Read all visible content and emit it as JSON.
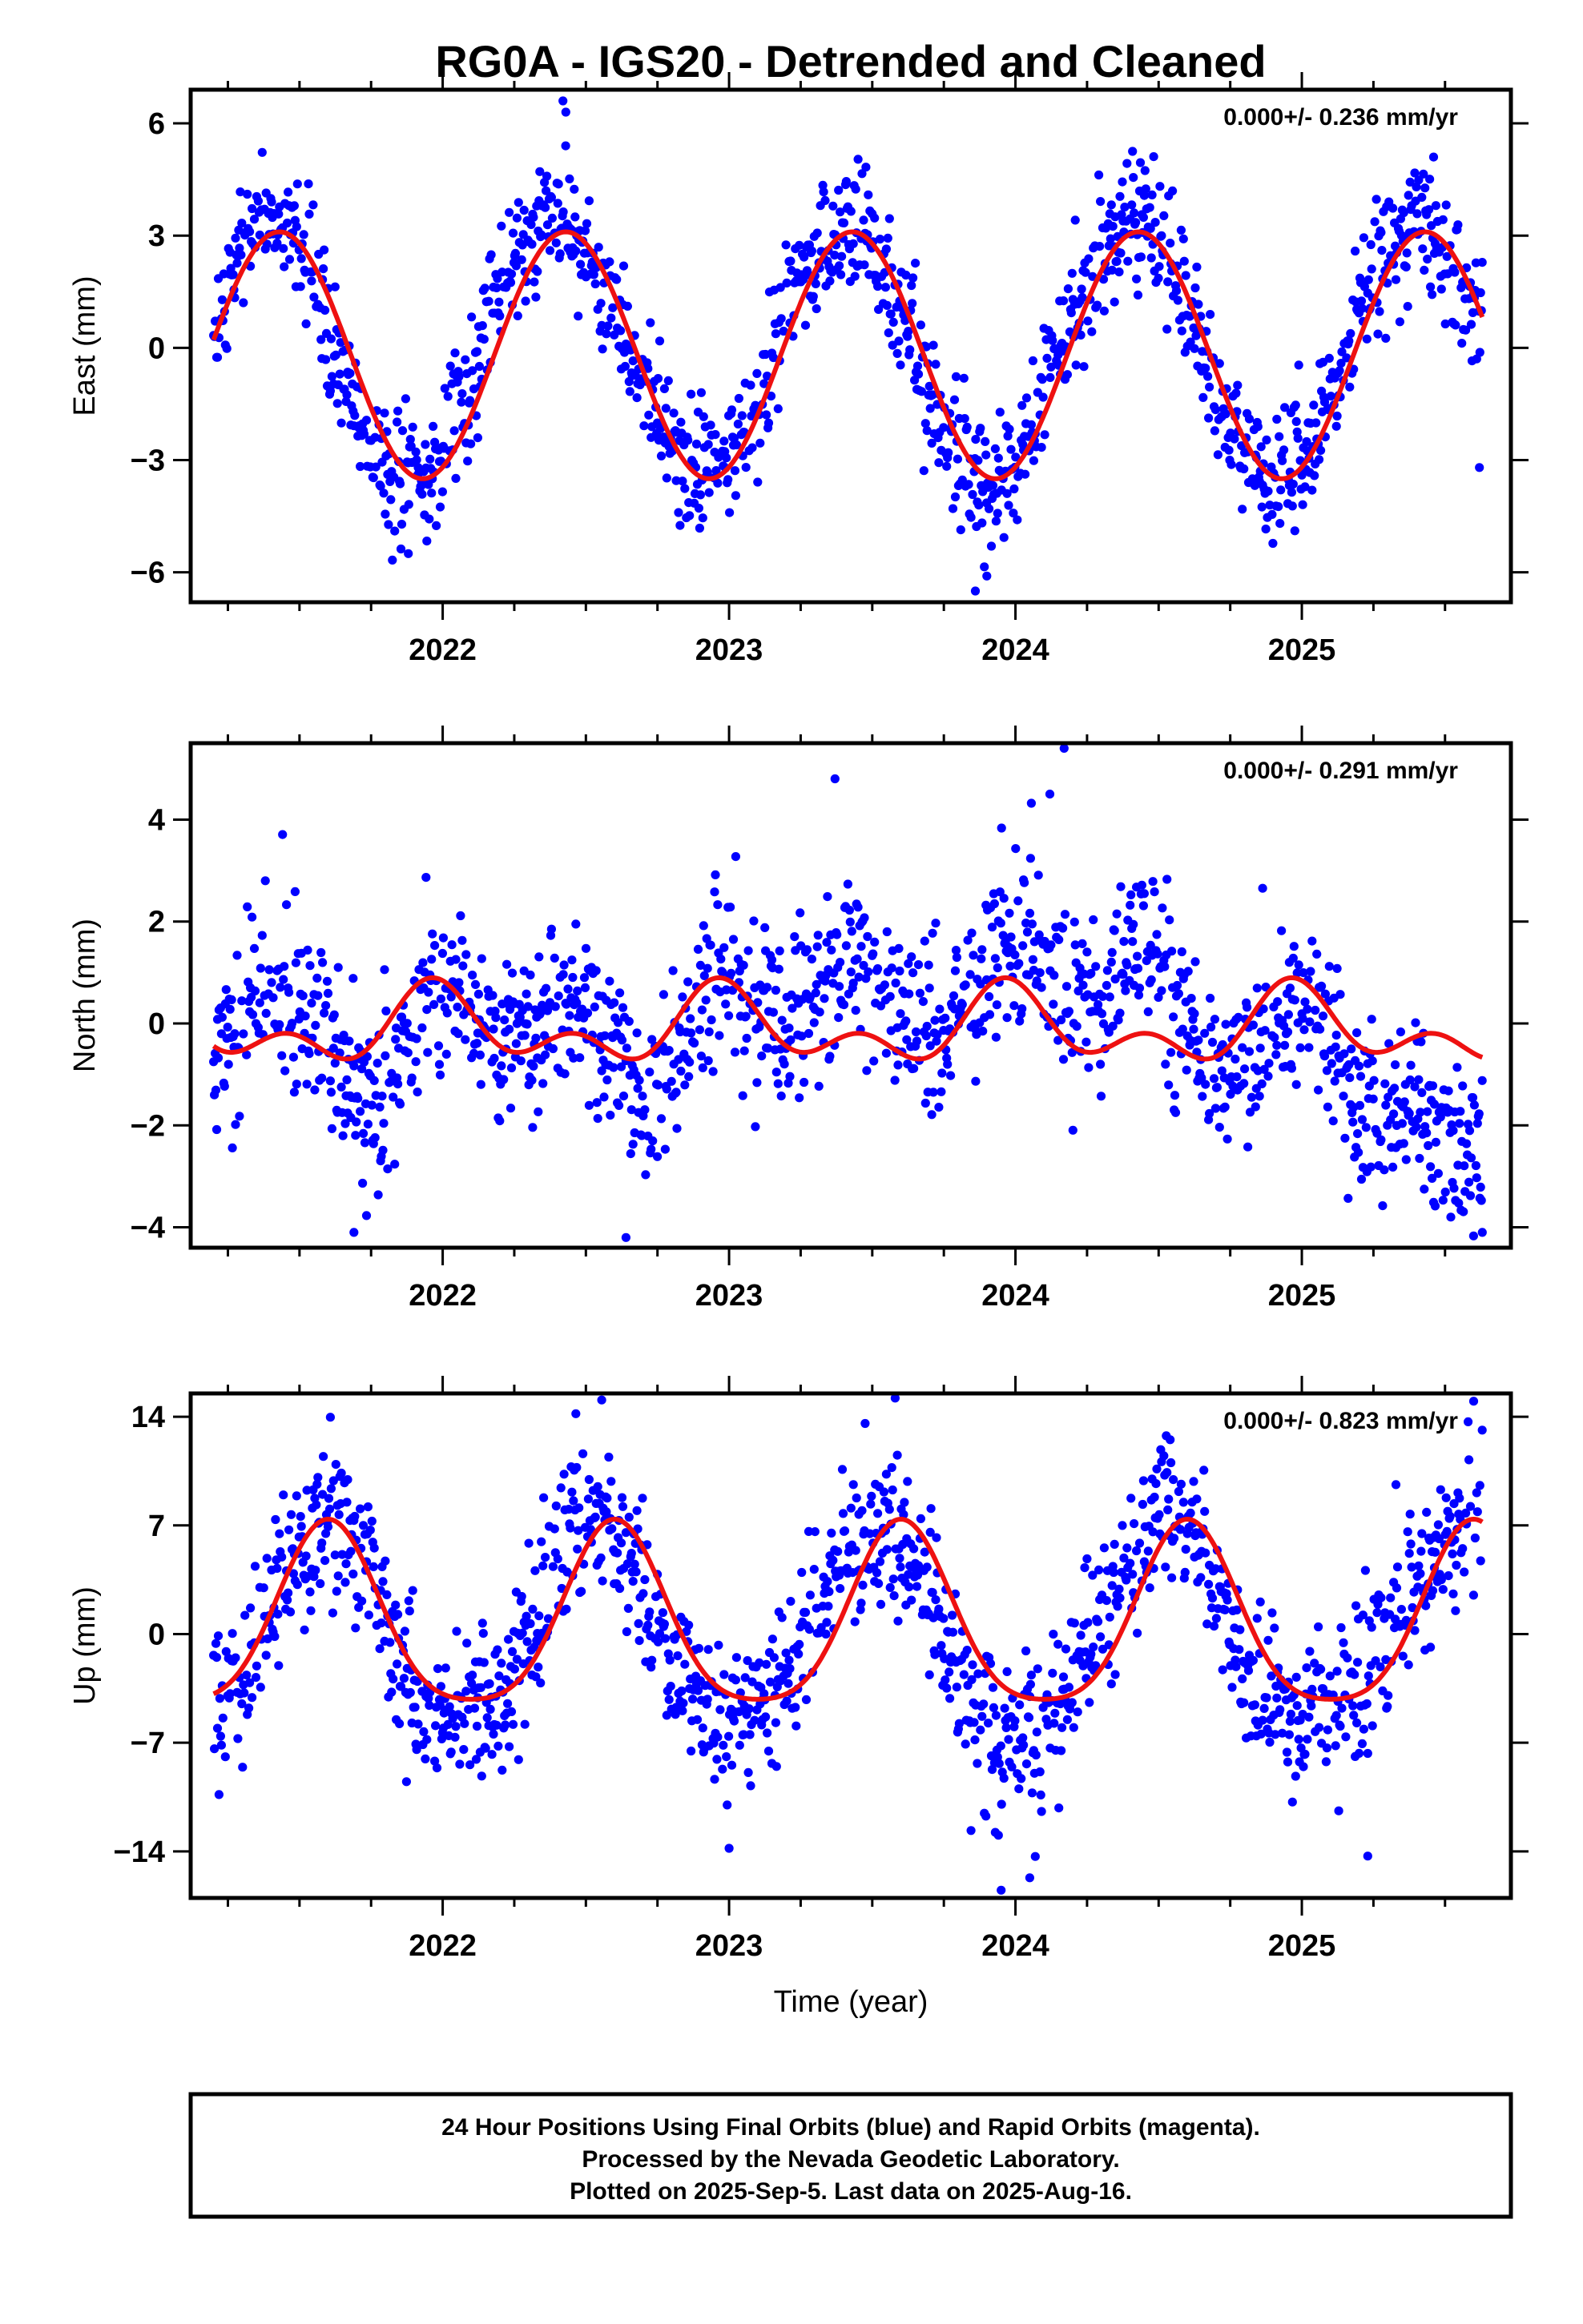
{
  "title": "RG0A - IGS20 - Detrended and Cleaned",
  "colors": {
    "points": "#0000ff",
    "fit": "#ee1111",
    "frame": "#000000"
  },
  "xlabel": "Time (year)",
  "footer": {
    "lines": [
      "24 Hour Positions Using Final Orbits (blue) and Rapid Orbits (magenta).",
      "Processed by the Nevada Geodetic Laboratory.",
      "Plotted on 2025-Sep-5. Last data on 2025-Aug-16."
    ]
  },
  "chart_data": [
    {
      "type": "scatter",
      "component": "east",
      "ylabel": "East (mm)",
      "rate_text": "0.000+/- 0.236 mm/yr",
      "xlim": [
        2021.12,
        2025.73
      ],
      "ylim": [
        -6.8,
        6.9
      ],
      "xticks": [
        2022,
        2023,
        2024,
        2025
      ],
      "yticks": [
        6,
        3,
        0,
        -3,
        -6
      ],
      "ytick_labels": [
        "6",
        "3",
        "0",
        "−3",
        "−6"
      ],
      "data_range": [
        2021.2,
        2025.63
      ],
      "fit": {
        "offset": -0.2,
        "annual_amp": 3.3,
        "annual_peak": 2021.43,
        "semiannual_amp": 0.0,
        "semiannual_peak": 2021.43
      },
      "scatter": {
        "noise_sd": 0.9,
        "outliers": [
          [
            2022.42,
            6.6
          ],
          [
            2022.43,
            6.3
          ],
          [
            2023.86,
            -6.5
          ],
          [
            2023.9,
            -6.1
          ],
          [
            2021.88,
            -5.5
          ],
          [
            2025.62,
            -3.2
          ]
        ]
      },
      "points": [
        [
          2021.2,
          0.5
        ],
        [
          2021.25,
          1.5
        ],
        [
          2021.3,
          2.4
        ],
        [
          2021.35,
          3.2
        ],
        [
          2021.4,
          3.6
        ],
        [
          2021.45,
          3.3
        ],
        [
          2021.5,
          2.6
        ],
        [
          2021.55,
          1.7
        ],
        [
          2021.6,
          0.5
        ],
        [
          2021.65,
          -0.7
        ],
        [
          2021.7,
          -1.8
        ],
        [
          2021.75,
          -2.6
        ],
        [
          2021.8,
          -3.2
        ],
        [
          2021.85,
          -3.5
        ],
        [
          2021.9,
          -3.6
        ],
        [
          2021.95,
          -3.3
        ],
        [
          2022.0,
          -2.7
        ],
        [
          2022.05,
          -1.8
        ],
        [
          2022.1,
          -0.8
        ],
        [
          2022.15,
          0.3
        ],
        [
          2022.2,
          1.3
        ],
        [
          2022.25,
          2.2
        ],
        [
          2022.3,
          2.9
        ],
        [
          2022.35,
          3.3
        ],
        [
          2022.4,
          3.4
        ],
        [
          2022.45,
          3.2
        ],
        [
          2022.5,
          2.7
        ],
        [
          2022.55,
          1.9
        ],
        [
          2022.6,
          1.0
        ],
        [
          2022.65,
          -0.1
        ],
        [
          2022.7,
          -1.1
        ],
        [
          2022.75,
          -2.0
        ],
        [
          2022.8,
          -2.7
        ],
        [
          2022.85,
          -3.1
        ],
        [
          2022.9,
          -3.3
        ],
        [
          2022.95,
          -3.2
        ],
        [
          2023.0,
          -2.8
        ],
        [
          2023.05,
          -2.1
        ],
        [
          2023.1,
          -1.3
        ],
        [
          2023.15,
          -0.3
        ],
        [
          2023.2,
          0.8
        ],
        [
          2023.25,
          1.8
        ],
        [
          2023.3,
          2.6
        ],
        [
          2023.35,
          3.1
        ],
        [
          2023.4,
          3.3
        ],
        [
          2023.45,
          3.1
        ],
        [
          2023.5,
          2.6
        ],
        [
          2023.55,
          1.8
        ],
        [
          2023.6,
          0.9
        ],
        [
          2023.65,
          -0.2
        ],
        [
          2023.7,
          -1.2
        ],
        [
          2023.75,
          -2.1
        ],
        [
          2023.8,
          -2.8
        ],
        [
          2023.85,
          -3.4
        ],
        [
          2023.9,
          -3.8
        ],
        [
          2023.95,
          -3.7
        ],
        [
          2024.0,
          -3.2
        ],
        [
          2024.05,
          -2.4
        ],
        [
          2024.1,
          -1.4
        ],
        [
          2024.15,
          -0.3
        ],
        [
          2024.2,
          0.8
        ],
        [
          2024.25,
          1.8
        ],
        [
          2024.3,
          2.6
        ],
        [
          2024.35,
          3.1
        ],
        [
          2024.4,
          3.3
        ],
        [
          2024.45,
          3.2
        ],
        [
          2024.5,
          2.8
        ],
        [
          2024.55,
          2.0
        ],
        [
          2024.6,
          1.0
        ],
        [
          2024.65,
          -0.1
        ],
        [
          2024.7,
          -1.2
        ],
        [
          2024.75,
          -2.1
        ],
        [
          2024.8,
          -2.8
        ],
        [
          2024.85,
          -3.3
        ],
        [
          2024.9,
          -3.5
        ],
        [
          2024.95,
          -3.3
        ],
        [
          2025.0,
          -2.8
        ],
        [
          2025.05,
          -2.1
        ],
        [
          2025.1,
          -1.2
        ],
        [
          2025.15,
          -0.2
        ],
        [
          2025.2,
          0.9
        ],
        [
          2025.25,
          1.8
        ],
        [
          2025.3,
          2.6
        ],
        [
          2025.35,
          3.1
        ],
        [
          2025.4,
          3.4
        ],
        [
          2025.45,
          3.3
        ],
        [
          2025.5,
          2.8
        ],
        [
          2025.55,
          1.9
        ],
        [
          2025.6,
          0.8
        ]
      ]
    },
    {
      "type": "scatter",
      "component": "north",
      "ylabel": "North (mm)",
      "rate_text": "0.000+/- 0.291 mm/yr",
      "xlim": [
        2021.12,
        2025.73
      ],
      "ylim": [
        -4.4,
        5.5
      ],
      "xticks": [
        2022,
        2023,
        2024,
        2025
      ],
      "yticks": [
        4,
        2,
        0,
        -2,
        -4
      ],
      "ytick_labels": [
        "4",
        "2",
        "0",
        "−2",
        "−4"
      ],
      "data_range": [
        2021.2,
        2025.63
      ],
      "fit": {
        "offset": -0.1,
        "annual_amp": 0.55,
        "annual_peak": 2021.98,
        "semiannual_amp": 0.45,
        "semiannual_peak": 2021.46
      },
      "scatter": {
        "noise_sd": 0.85,
        "outliers": [
          [
            2023.37,
            4.8
          ],
          [
            2024.17,
            5.4
          ],
          [
            2024.12,
            4.5
          ],
          [
            2022.64,
            -4.2
          ],
          [
            2021.69,
            -4.1
          ],
          [
            2025.63,
            -4.1
          ]
        ]
      },
      "points": [
        [
          2021.2,
          -0.6
        ],
        [
          2021.25,
          -0.1
        ],
        [
          2021.3,
          0.2
        ],
        [
          2021.35,
          0.3
        ],
        [
          2021.4,
          0.5
        ],
        [
          2021.45,
          0.6
        ],
        [
          2021.5,
          0.5
        ],
        [
          2021.55,
          0.1
        ],
        [
          2021.6,
          -0.4
        ],
        [
          2021.65,
          -0.9
        ],
        [
          2021.7,
          -1.4
        ],
        [
          2021.75,
          -1.6
        ],
        [
          2021.8,
          -1.3
        ],
        [
          2021.85,
          -0.7
        ],
        [
          2021.9,
          0.0
        ],
        [
          2021.95,
          0.5
        ],
        [
          2022.0,
          0.7
        ],
        [
          2022.05,
          0.6
        ],
        [
          2022.1,
          0.2
        ],
        [
          2022.15,
          -0.1
        ],
        [
          2022.2,
          -0.2
        ],
        [
          2022.25,
          0.0
        ],
        [
          2022.3,
          0.2
        ],
        [
          2022.35,
          0.1
        ],
        [
          2022.4,
          0.2
        ],
        [
          2022.45,
          0.4
        ],
        [
          2022.5,
          0.5
        ],
        [
          2022.55,
          0.2
        ],
        [
          2022.6,
          -0.6
        ],
        [
          2022.65,
          -1.2
        ],
        [
          2022.7,
          -1.6
        ],
        [
          2022.75,
          -1.5
        ],
        [
          2022.8,
          -1.0
        ],
        [
          2022.85,
          -0.3
        ],
        [
          2022.9,
          0.3
        ],
        [
          2022.95,
          0.8
        ],
        [
          2023.0,
          1.0
        ],
        [
          2023.05,
          0.8
        ],
        [
          2023.1,
          0.5
        ],
        [
          2023.15,
          0.2
        ],
        [
          2023.2,
          0.0
        ],
        [
          2023.25,
          0.3
        ],
        [
          2023.3,
          0.7
        ],
        [
          2023.35,
          1.1
        ],
        [
          2023.4,
          1.3
        ],
        [
          2023.45,
          1.2
        ],
        [
          2023.5,
          0.9
        ],
        [
          2023.55,
          0.6
        ],
        [
          2023.6,
          0.2
        ],
        [
          2023.65,
          0.0
        ],
        [
          2023.7,
          -0.2
        ],
        [
          2023.75,
          -0.1
        ],
        [
          2023.8,
          0.2
        ],
        [
          2023.85,
          0.6
        ],
        [
          2023.9,
          1.1
        ],
        [
          2023.95,
          1.5
        ],
        [
          2024.0,
          1.7
        ],
        [
          2024.05,
          1.6
        ],
        [
          2024.1,
          1.3
        ],
        [
          2024.15,
          1.0
        ],
        [
          2024.2,
          0.6
        ],
        [
          2024.25,
          0.5
        ],
        [
          2024.3,
          0.6
        ],
        [
          2024.35,
          1.0
        ],
        [
          2024.4,
          1.4
        ],
        [
          2024.45,
          1.4
        ],
        [
          2024.5,
          1.0
        ],
        [
          2024.55,
          0.5
        ],
        [
          2024.6,
          0.0
        ],
        [
          2024.65,
          -0.6
        ],
        [
          2024.7,
          -1.0
        ],
        [
          2024.75,
          -1.1
        ],
        [
          2024.8,
          -0.7
        ],
        [
          2024.85,
          -0.3
        ],
        [
          2024.9,
          0.1
        ],
        [
          2024.95,
          0.3
        ],
        [
          2025.0,
          0.4
        ],
        [
          2025.05,
          0.1
        ],
        [
          2025.1,
          -0.5
        ],
        [
          2025.15,
          -1.2
        ],
        [
          2025.2,
          -1.6
        ],
        [
          2025.25,
          -1.8
        ],
        [
          2025.3,
          -1.9
        ],
        [
          2025.35,
          -1.8
        ],
        [
          2025.4,
          -1.7
        ],
        [
          2025.45,
          -1.8
        ],
        [
          2025.5,
          -1.9
        ],
        [
          2025.55,
          -2.0
        ],
        [
          2025.6,
          -2.0
        ]
      ]
    },
    {
      "type": "scatter",
      "component": "up",
      "ylabel": "Up (mm)",
      "rate_text": "0.000+/- 0.823 mm/yr",
      "xlim": [
        2021.12,
        2025.73
      ],
      "ylim": [
        -17.0,
        15.5
      ],
      "xticks": [
        2022,
        2023,
        2024,
        2025
      ],
      "yticks": [
        14,
        7,
        0,
        -7,
        -14
      ],
      "ytick_labels": [
        "14",
        "7",
        "0",
        "−7",
        "−14"
      ],
      "data_range": [
        2021.2,
        2025.63
      ],
      "fit": {
        "offset": 0.5,
        "annual_amp": 5.8,
        "annual_peak": 2021.6,
        "semiannual_amp": 1.1,
        "semiannual_peak": 2021.6
      },
      "scatter": {
        "noise_sd": 2.6,
        "outliers": [
          [
            2023.58,
            15.2
          ],
          [
            2025.6,
            15.0
          ],
          [
            2023.95,
            -16.5
          ],
          [
            2024.05,
            -15.7
          ],
          [
            2023.0,
            -13.8
          ],
          [
            2025.23,
            -14.3
          ]
        ]
      },
      "points": [
        [
          2021.2,
          -4.0
        ],
        [
          2021.25,
          -4.5
        ],
        [
          2021.3,
          -3.0
        ],
        [
          2021.35,
          0.0
        ],
        [
          2021.4,
          2.5
        ],
        [
          2021.45,
          4.0
        ],
        [
          2021.5,
          5.5
        ],
        [
          2021.55,
          6.5
        ],
        [
          2021.6,
          7.5
        ],
        [
          2021.65,
          7.5
        ],
        [
          2021.7,
          6.0
        ],
        [
          2021.75,
          4.0
        ],
        [
          2021.8,
          1.0
        ],
        [
          2021.85,
          -2.0
        ],
        [
          2021.9,
          -4.0
        ],
        [
          2021.95,
          -5.0
        ],
        [
          2022.0,
          -5.5
        ],
        [
          2022.05,
          -5.5
        ],
        [
          2022.1,
          -5.0
        ],
        [
          2022.15,
          -4.5
        ],
        [
          2022.2,
          -4.0
        ],
        [
          2022.25,
          -3.0
        ],
        [
          2022.3,
          -1.0
        ],
        [
          2022.35,
          2.0
        ],
        [
          2022.4,
          4.5
        ],
        [
          2022.45,
          6.5
        ],
        [
          2022.5,
          7.5
        ],
        [
          2022.55,
          7.5
        ],
        [
          2022.6,
          6.5
        ],
        [
          2022.65,
          5.0
        ],
        [
          2022.7,
          3.0
        ],
        [
          2022.75,
          0.5
        ],
        [
          2022.8,
          -2.0
        ],
        [
          2022.85,
          -3.5
        ],
        [
          2022.9,
          -4.5
        ],
        [
          2022.95,
          -5.0
        ],
        [
          2023.0,
          -5.5
        ],
        [
          2023.05,
          -5.0
        ],
        [
          2023.1,
          -4.5
        ],
        [
          2023.15,
          -4.0
        ],
        [
          2023.2,
          -3.0
        ],
        [
          2023.25,
          -1.0
        ],
        [
          2023.3,
          1.5
        ],
        [
          2023.35,
          3.5
        ],
        [
          2023.4,
          5.5
        ],
        [
          2023.45,
          6.5
        ],
        [
          2023.5,
          7.0
        ],
        [
          2023.55,
          6.5
        ],
        [
          2023.6,
          5.5
        ],
        [
          2023.65,
          4.0
        ],
        [
          2023.7,
          2.0
        ],
        [
          2023.75,
          -0.5
        ],
        [
          2023.8,
          -2.5
        ],
        [
          2023.85,
          -4.5
        ],
        [
          2023.9,
          -6.0
        ],
        [
          2023.95,
          -7.0
        ],
        [
          2024.0,
          -7.0
        ],
        [
          2024.05,
          -6.5
        ],
        [
          2024.1,
          -5.5
        ],
        [
          2024.15,
          -4.5
        ],
        [
          2024.2,
          -3.0
        ],
        [
          2024.25,
          -1.5
        ],
        [
          2024.3,
          0.5
        ],
        [
          2024.35,
          2.5
        ],
        [
          2024.4,
          4.5
        ],
        [
          2024.45,
          6.5
        ],
        [
          2024.5,
          8.0
        ],
        [
          2024.55,
          8.5
        ],
        [
          2024.6,
          7.5
        ],
        [
          2024.65,
          6.0
        ],
        [
          2024.7,
          3.5
        ],
        [
          2024.75,
          0.5
        ],
        [
          2024.8,
          -2.0
        ],
        [
          2024.85,
          -3.5
        ],
        [
          2024.9,
          -4.5
        ],
        [
          2024.95,
          -5.0
        ],
        [
          2025.0,
          -5.0
        ],
        [
          2025.05,
          -5.0
        ],
        [
          2025.1,
          -4.5
        ],
        [
          2025.15,
          -4.5
        ],
        [
          2025.2,
          -3.5
        ],
        [
          2025.25,
          -2.0
        ],
        [
          2025.3,
          0.0
        ],
        [
          2025.35,
          2.0
        ],
        [
          2025.4,
          3.5
        ],
        [
          2025.45,
          5.0
        ],
        [
          2025.5,
          6.0
        ],
        [
          2025.55,
          7.0
        ],
        [
          2025.6,
          7.5
        ]
      ]
    }
  ]
}
